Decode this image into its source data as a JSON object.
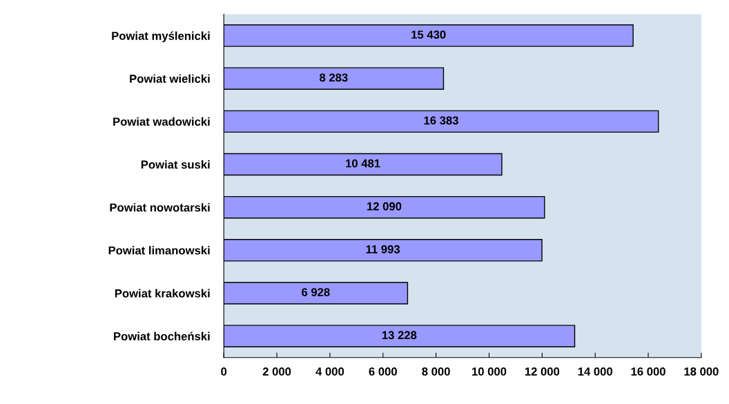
{
  "chart_data": {
    "type": "bar",
    "orientation": "horizontal",
    "categories": [
      "Powiat myślenicki",
      "Powiat wielicki",
      "Powiat wadowicki",
      "Powiat suski",
      "Powiat nowotarski",
      "Powiat limanowski",
      "Powiat krakowski",
      "Powiat bocheński"
    ],
    "values": [
      15430,
      8283,
      16383,
      10481,
      12090,
      11993,
      6928,
      13228
    ],
    "value_labels": [
      "15 430",
      "8 283",
      "16 383",
      "10 481",
      "12 090",
      "11 993",
      "6 928",
      "13 228"
    ],
    "color": "#9999ff",
    "xlim": [
      0,
      18000
    ],
    "xticks": [
      0,
      {
        "value": 2000,
        "label": "2 000"
      },
      {
        "value": 4000,
        "label": "4 000"
      },
      {
        "value": 6000,
        "label": "6 000"
      },
      {
        "value": 8000,
        "label": "8 000"
      },
      {
        "value": 10000,
        "label": "10 000"
      },
      {
        "value": 12000,
        "label": "12 000"
      },
      {
        "value": 14000,
        "label": "14 000"
      },
      {
        "value": 16000,
        "label": "16 000"
      },
      {
        "value": 18000,
        "label": "18 000"
      }
    ],
    "grid": false,
    "legend": false
  }
}
